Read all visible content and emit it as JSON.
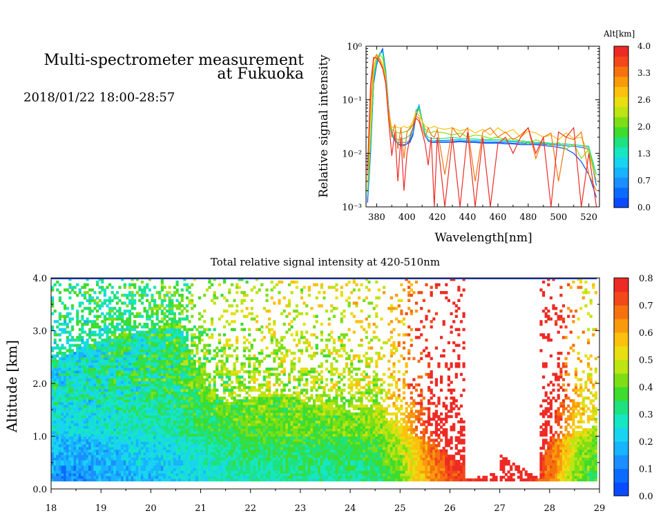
{
  "header": {
    "title_line1": "Multi-spectrometer measurement",
    "title_line2": "at Fukuoka",
    "datetime": "2018/01/22 18:00-28:57"
  },
  "colors": {
    "scale": [
      "#0b4bff",
      "#0a6cff",
      "#1b8fff",
      "#17b4ff",
      "#19d4f0",
      "#16e6c2",
      "#1ee27f",
      "#3edc2c",
      "#7ede15",
      "#bde413",
      "#e9de12",
      "#fbc10e",
      "#f99a0d",
      "#f6720e",
      "#f2481a",
      "#ee2a24"
    ]
  },
  "chart_data": [
    {
      "type": "line",
      "title": "",
      "xlabel": "Wavelength[nm]",
      "ylabel": "Relative signal intensity",
      "xlim": [
        373,
        527
      ],
      "ylim": [
        0.001,
        1
      ],
      "yscale": "log",
      "x_ticks": [
        "380",
        "400",
        "420",
        "440",
        "460",
        "480",
        "500",
        "520"
      ],
      "y_ticks": [
        "10⁻³",
        "10⁻²",
        "10⁻¹",
        "10⁰"
      ],
      "colorbar": {
        "title": "Alt[km]",
        "range": [
          0,
          4.0
        ],
        "ticks": [
          "4.0",
          "3.3",
          "2.6",
          "2.0",
          "1.3",
          "0.7",
          "0.0"
        ]
      },
      "x": [
        374,
        376,
        378,
        380,
        382,
        384,
        386,
        388,
        390,
        392,
        394,
        396,
        398,
        400,
        402,
        404,
        406,
        408,
        410,
        412,
        414,
        416,
        418,
        420,
        425,
        430,
        435,
        440,
        445,
        450,
        455,
        460,
        465,
        470,
        475,
        480,
        485,
        490,
        495,
        500,
        505,
        510,
        515,
        520,
        525
      ],
      "series": [
        {
          "alt": 0.1,
          "values": [
            0.0012,
            0.01,
            0.2,
            0.45,
            0.7,
            0.9,
            0.35,
            0.07,
            0.025,
            0.018,
            0.015,
            0.014,
            0.014,
            0.015,
            0.016,
            0.022,
            0.05,
            0.075,
            0.04,
            0.022,
            0.017,
            0.016,
            0.016,
            0.016,
            0.016,
            0.016,
            0.0165,
            0.016,
            0.016,
            0.0155,
            0.0155,
            0.0155,
            0.015,
            0.015,
            0.0145,
            0.0145,
            0.0145,
            0.014,
            0.0135,
            0.013,
            0.012,
            0.01,
            0.007,
            0.004,
            0.0015
          ]
        },
        {
          "alt": 0.4,
          "values": [
            0.0014,
            0.012,
            0.22,
            0.48,
            0.72,
            0.85,
            0.33,
            0.065,
            0.024,
            0.018,
            0.015,
            0.0145,
            0.0145,
            0.015,
            0.017,
            0.024,
            0.055,
            0.08,
            0.042,
            0.022,
            0.018,
            0.017,
            0.0168,
            0.0168,
            0.0168,
            0.0168,
            0.017,
            0.0165,
            0.0165,
            0.016,
            0.016,
            0.016,
            0.0158,
            0.0155,
            0.0152,
            0.015,
            0.015,
            0.0148,
            0.0145,
            0.0142,
            0.0138,
            0.0135,
            0.013,
            0.012,
            0.0025
          ]
        },
        {
          "alt": 0.9,
          "values": [
            0.0015,
            0.013,
            0.24,
            0.5,
            0.72,
            0.8,
            0.32,
            0.065,
            0.022,
            0.017,
            0.016,
            0.016,
            0.016,
            0.016,
            0.018,
            0.025,
            0.06,
            0.078,
            0.04,
            0.022,
            0.018,
            0.017,
            0.017,
            0.0175,
            0.0175,
            0.018,
            0.018,
            0.0175,
            0.0175,
            0.017,
            0.017,
            0.0168,
            0.0165,
            0.0165,
            0.016,
            0.016,
            0.0158,
            0.0155,
            0.0152,
            0.015,
            0.0148,
            0.0145,
            0.014,
            0.0135,
            0.003
          ]
        },
        {
          "alt": 1.5,
          "values": [
            0.002,
            0.015,
            0.26,
            0.55,
            0.75,
            0.75,
            0.3,
            0.06,
            0.023,
            0.019,
            0.018,
            0.018,
            0.019,
            0.02,
            0.022,
            0.03,
            0.065,
            0.07,
            0.04,
            0.024,
            0.02,
            0.019,
            0.019,
            0.019,
            0.019,
            0.02,
            0.019,
            0.019,
            0.0185,
            0.018,
            0.018,
            0.018,
            0.0175,
            0.017,
            0.017,
            0.0165,
            0.016,
            0.016,
            0.0155,
            0.015,
            0.015,
            0.0145,
            0.014,
            0.013,
            0.004
          ]
        },
        {
          "alt": 2.2,
          "values": [
            0.002,
            0.02,
            0.3,
            0.6,
            0.7,
            0.6,
            0.28,
            0.06,
            0.028,
            0.026,
            0.024,
            0.024,
            0.025,
            0.026,
            0.028,
            0.034,
            0.06,
            0.065,
            0.04,
            0.028,
            0.025,
            0.024,
            0.026,
            0.025,
            0.024,
            0.022,
            0.024,
            0.02,
            0.022,
            0.021,
            0.019,
            0.02,
            0.018,
            0.019,
            0.017,
            0.015,
            0.018,
            0.016,
            0.014,
            0.016,
            0.012,
            0.015,
            0.008,
            0.012,
            0.003
          ]
        },
        {
          "alt": 2.8,
          "values": [
            0.003,
            0.05,
            0.4,
            0.65,
            0.6,
            0.45,
            0.25,
            0.06,
            0.03,
            0.032,
            0.03,
            0.03,
            0.032,
            0.03,
            0.032,
            0.04,
            0.06,
            0.05,
            0.04,
            0.032,
            0.03,
            0.03,
            0.032,
            0.03,
            0.028,
            0.03,
            0.026,
            0.029,
            0.024,
            0.028,
            0.022,
            0.03,
            0.024,
            0.028,
            0.02,
            0.026,
            0.024,
            0.02,
            0.022,
            0.018,
            0.024,
            0.019,
            0.02,
            0.01,
            0.003
          ]
        },
        {
          "alt": 3.4,
          "values": [
            0.004,
            0.1,
            0.55,
            0.7,
            0.55,
            0.4,
            0.22,
            0.05,
            0.02,
            0.035,
            0.012,
            0.03,
            0.008,
            0.025,
            0.03,
            0.035,
            0.05,
            0.045,
            0.03,
            0.02,
            0.03,
            0.022,
            0.02,
            0.028,
            0.004,
            0.03,
            0.02,
            0.03,
            0.003,
            0.025,
            0.03,
            0.02,
            0.025,
            0.018,
            0.022,
            0.03,
            0.008,
            0.02,
            0.024,
            0.003,
            0.02,
            0.018,
            0.025,
            0.004,
            0.002
          ]
        },
        {
          "alt": 3.9,
          "values": [
            0.005,
            0.2,
            0.62,
            0.6,
            0.5,
            0.38,
            0.2,
            0.04,
            0.009,
            0.025,
            0.003,
            0.02,
            0.002,
            0.01,
            0.02,
            0.03,
            0.045,
            0.04,
            0.025,
            0.015,
            0.006,
            0.02,
            0.001,
            0.02,
            0.001,
            0.02,
            0.001,
            0.025,
            0.001,
            0.02,
            0.001,
            0.015,
            0.02,
            0.01,
            0.02,
            0.03,
            0.01,
            0.02,
            0.001,
            0.025,
            0.02,
            0.03,
            0.001,
            0.01,
            0.001
          ]
        }
      ]
    },
    {
      "type": "heatmap",
      "title": "Total relative signal intensity at 420-510nm",
      "xlabel": "",
      "ylabel": "Altitude [km]",
      "xlim": [
        18,
        29
      ],
      "ylim": [
        0,
        4.0
      ],
      "x_ticks": [
        "18",
        "19",
        "20",
        "21",
        "22",
        "23",
        "24",
        "25",
        "26",
        "27",
        "28",
        "29"
      ],
      "y_ticks": [
        "0.0",
        "1.0",
        "2.0",
        "3.0",
        "4.0"
      ],
      "colorbar": {
        "range": [
          0,
          0.8
        ],
        "ticks": [
          "0.0",
          "0.1",
          "0.2",
          "0.3",
          "0.4",
          "0.5",
          "0.6",
          "0.7",
          "0.8"
        ]
      },
      "data_range_x": [
        18.0,
        28.95
      ],
      "data_range_y": [
        0.15,
        4.0
      ],
      "time_profile": [
        {
          "t": 18.0,
          "base": 0.14,
          "top_reach": 2.4
        },
        {
          "t": 18.5,
          "base": 0.12,
          "top_reach": 2.6
        },
        {
          "t": 19.0,
          "base": 0.15,
          "top_reach": 2.8
        },
        {
          "t": 19.5,
          "base": 0.17,
          "top_reach": 2.9
        },
        {
          "t": 20.0,
          "base": 0.18,
          "top_reach": 3.0
        },
        {
          "t": 20.5,
          "base": 0.2,
          "top_reach": 3.2
        },
        {
          "t": 21.0,
          "base": 0.24,
          "top_reach": 2.0
        },
        {
          "t": 21.5,
          "base": 0.27,
          "top_reach": 1.6
        },
        {
          "t": 22.0,
          "base": 0.29,
          "top_reach": 1.7
        },
        {
          "t": 22.5,
          "base": 0.3,
          "top_reach": 1.8
        },
        {
          "t": 23.0,
          "base": 0.3,
          "top_reach": 1.6
        },
        {
          "t": 23.5,
          "base": 0.3,
          "top_reach": 1.6
        },
        {
          "t": 24.0,
          "base": 0.31,
          "top_reach": 1.4
        },
        {
          "t": 24.5,
          "base": 0.33,
          "top_reach": 1.5
        },
        {
          "t": 25.0,
          "base": 0.42,
          "top_reach": 1.1
        },
        {
          "t": 25.5,
          "base": 0.6,
          "top_reach": 0.9
        },
        {
          "t": 26.0,
          "base": 0.72,
          "top_reach": 0.6
        },
        {
          "t": 26.5,
          "base": 0.78,
          "top_reach": 0.25
        },
        {
          "t": 27.0,
          "base": 0.8,
          "top_reach": 0.0
        },
        {
          "t": 27.5,
          "base": 0.8,
          "top_reach": 0.0
        },
        {
          "t": 28.0,
          "base": 0.65,
          "top_reach": 0.9
        },
        {
          "t": 28.5,
          "base": 0.42,
          "top_reach": 1.0
        },
        {
          "t": 28.95,
          "base": 0.35,
          "top_reach": 1.2
        }
      ]
    }
  ]
}
